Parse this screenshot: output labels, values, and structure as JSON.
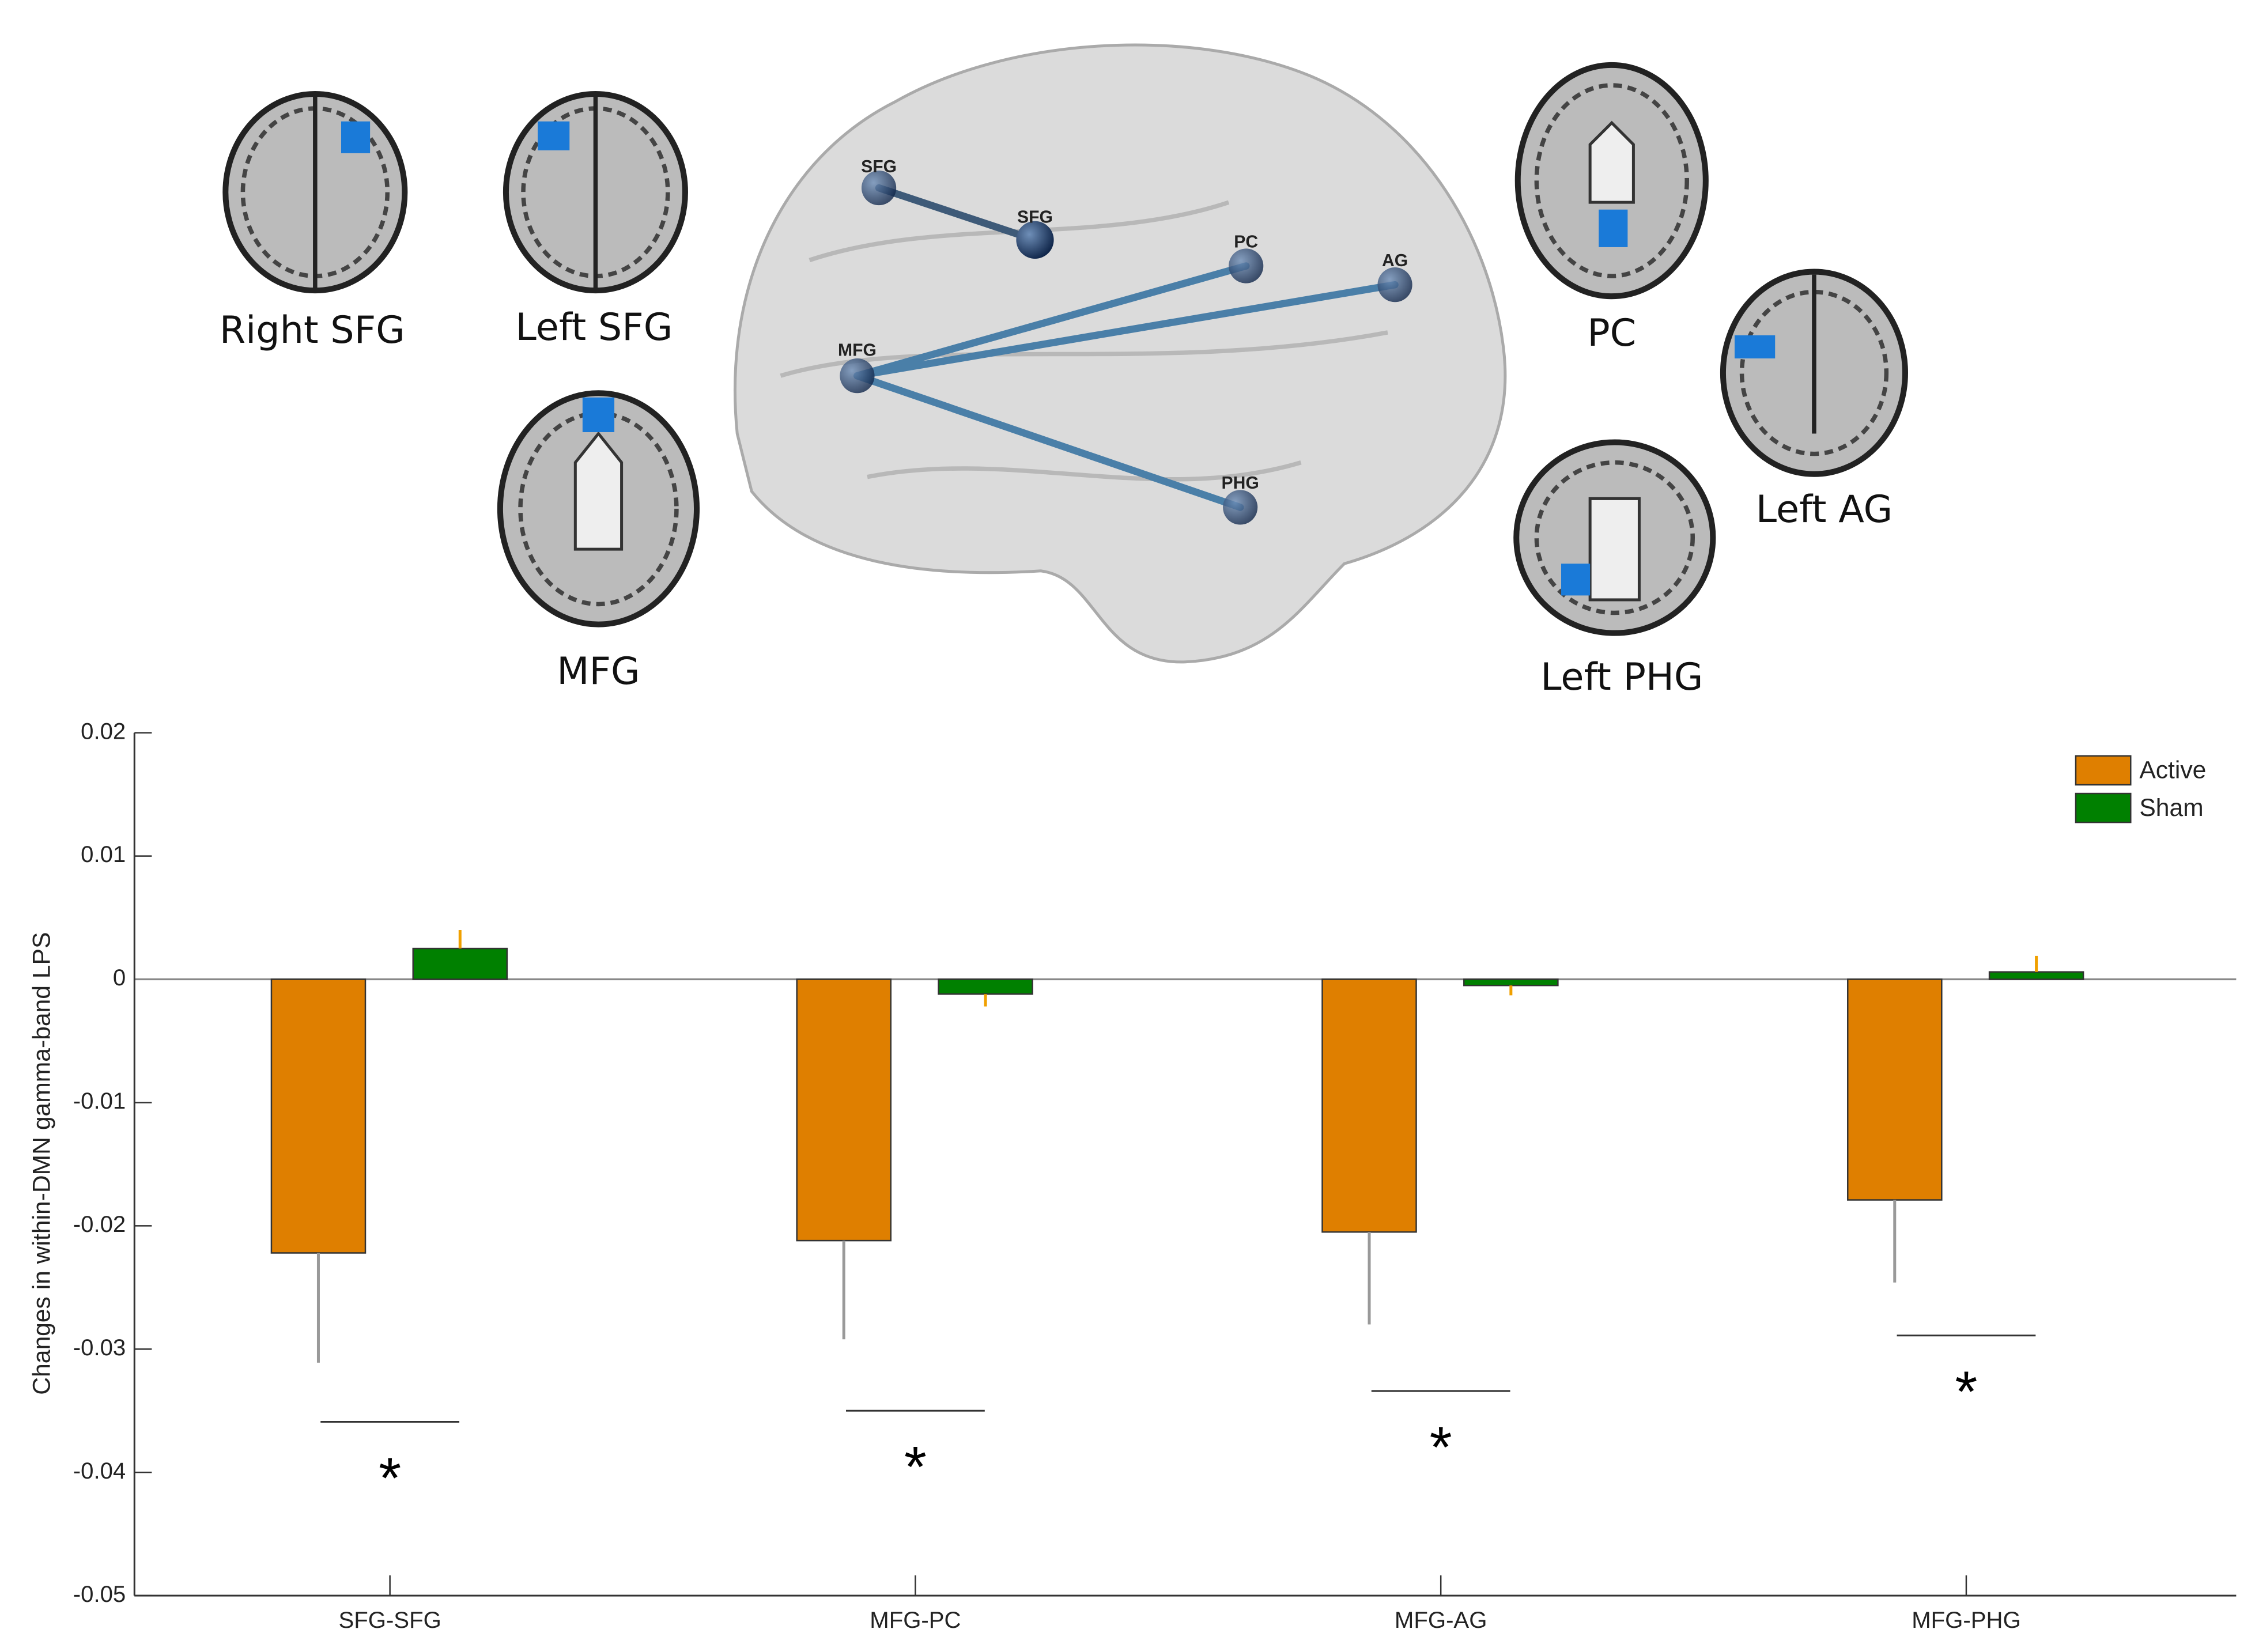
{
  "brain_panel": {
    "region_labels": [
      "Right SFG",
      "Left SFG",
      "MFG",
      "PC",
      "Left AG",
      "Left PHG"
    ],
    "node_labels": [
      "SFG",
      "SFG",
      "PC",
      "AG",
      "MFG",
      "PHG"
    ]
  },
  "chart_data": {
    "type": "bar",
    "ylabel": "Changes in within-DMN gamma-band LPS",
    "categories": [
      "SFG-SFG",
      "MFG-PC",
      "MFG-AG",
      "MFG-PHG"
    ],
    "series": [
      {
        "name": "Active",
        "color": "#df7f00",
        "error_color": "#999999",
        "values": [
          -0.0222,
          -0.0212,
          -0.0205,
          -0.0179
        ],
        "errors": [
          0.0089,
          0.008,
          0.0075,
          0.0067
        ]
      },
      {
        "name": "Sham",
        "color": "#008000",
        "error_color": "#f0a000",
        "values": [
          0.0025,
          -0.0012,
          -0.0005,
          0.0006
        ],
        "errors": [
          0.0015,
          0.001,
          0.0008,
          0.0013
        ]
      }
    ],
    "ylim": [
      -0.05,
      0.02
    ],
    "yticks": [
      -0.05,
      -0.04,
      -0.03,
      -0.02,
      -0.01,
      0,
      0.01,
      0.02
    ],
    "legend": "northeast",
    "annotations": [
      {
        "x": "SFG-SFG",
        "y": -0.0359,
        "text": "*"
      },
      {
        "x": "MFG-PC",
        "y": -0.035,
        "text": "*"
      },
      {
        "x": "MFG-AG",
        "y": -0.0334,
        "text": "*"
      },
      {
        "x": "MFG-PHG",
        "y": -0.0289,
        "text": "*"
      }
    ]
  }
}
